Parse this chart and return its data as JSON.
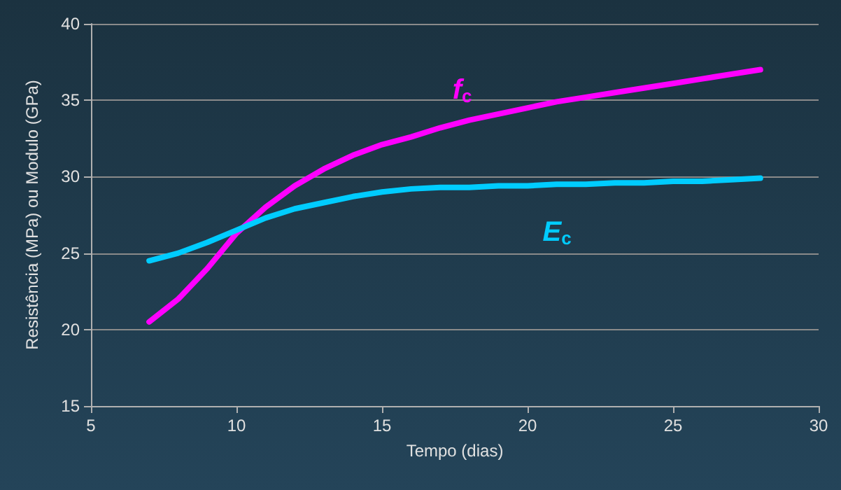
{
  "chart_data": {
    "type": "line",
    "xlabel": "Tempo (dias)",
    "ylabel": "Resistência (MPa) ou Modulo (GPa)",
    "x": [
      7,
      8,
      9,
      10,
      11,
      12,
      13,
      14,
      15,
      16,
      17,
      18,
      19,
      20,
      21,
      22,
      23,
      24,
      25,
      26,
      27,
      28
    ],
    "series": [
      {
        "name": "f$_{c}$",
        "color": "#ff00ff",
        "values": [
          20.5,
          22.0,
          24.0,
          26.3,
          28.0,
          29.4,
          30.5,
          31.4,
          32.1,
          32.6,
          33.2,
          33.7,
          34.1,
          34.5,
          34.9,
          35.2,
          35.5,
          35.8,
          36.1,
          36.4,
          36.7,
          37.0
        ]
      },
      {
        "name": "E$_{c}$",
        "color": "#00ccff",
        "values": [
          24.5,
          25.0,
          25.7,
          26.5,
          27.3,
          27.9,
          28.3,
          28.7,
          29.0,
          29.2,
          29.3,
          29.3,
          29.4,
          29.4,
          29.5,
          29.5,
          29.6,
          29.6,
          29.7,
          29.7,
          29.8,
          29.9
        ]
      }
    ],
    "xlim": [
      5,
      30
    ],
    "xticks": [
      5,
      10,
      15,
      20,
      25,
      30
    ],
    "ylim": [
      15,
      40
    ],
    "yticks": [
      15,
      20,
      25,
      30,
      35,
      40
    ],
    "grid": "y",
    "legend": false,
    "marker": "none",
    "line_style": "solid"
  }
}
